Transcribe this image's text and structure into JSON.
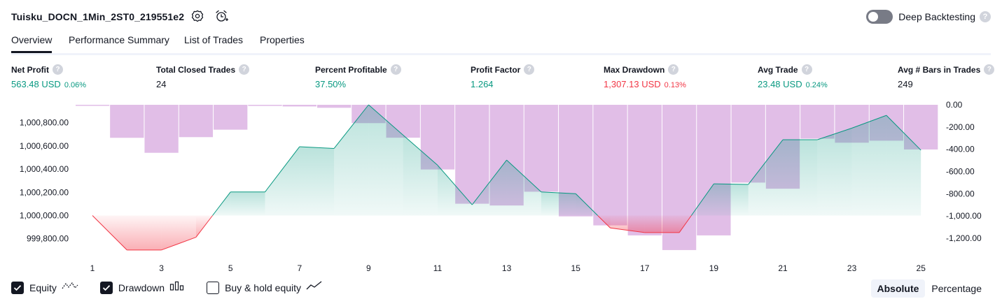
{
  "header": {
    "title": "Tuisku_DOCN_1Min_2ST0_219551e2",
    "settings_icon": "gear-icon",
    "alert_icon": "alarm-clock-icon",
    "deep_backtesting_label": "Deep Backtesting",
    "help_glyph": "?"
  },
  "tabs": [
    {
      "label": "Overview",
      "active": true
    },
    {
      "label": "Performance Summary",
      "active": false
    },
    {
      "label": "List of Trades",
      "active": false
    },
    {
      "label": "Properties",
      "active": false
    }
  ],
  "stats": [
    {
      "label": "Net Profit",
      "value": "563.48 USD",
      "pct": "0.06%",
      "color": "#089981"
    },
    {
      "label": "Total Closed Trades",
      "value": "24",
      "pct": "",
      "color": "#131722"
    },
    {
      "label": "Percent Profitable",
      "value": "37.50%",
      "pct": "",
      "color": "#089981"
    },
    {
      "label": "Profit Factor",
      "value": "1.264",
      "pct": "",
      "color": "#089981"
    },
    {
      "label": "Max Drawdown",
      "value": "1,307.13 USD",
      "pct": "0.13%",
      "color": "#f23645"
    },
    {
      "label": "Avg Trade",
      "value": "23.48 USD",
      "pct": "0.24%",
      "color": "#089981"
    },
    {
      "label": "Avg # Bars in Trades",
      "value": "249",
      "pct": "",
      "color": "#131722"
    }
  ],
  "chart_data": {
    "type": "area",
    "x_ticks": [
      "1",
      "3",
      "5",
      "7",
      "9",
      "11",
      "13",
      "15",
      "17",
      "19",
      "21",
      "23",
      "25"
    ],
    "left_axis": {
      "ticks": [
        "1,000,800.00",
        "1,000,600.00",
        "1,000,400.00",
        "1,000,200.00",
        "1,000,000.00",
        "999,800.00"
      ],
      "tick_values": [
        1000800,
        1000600,
        1000400,
        1000200,
        1000000,
        999800
      ],
      "range": [
        999690,
        1000954
      ]
    },
    "right_axis": {
      "ticks": [
        "0.00",
        "-200.00",
        "-400.00",
        "-600.00",
        "-800.00",
        "-1,000.00",
        "-1,200.00"
      ],
      "tick_values": [
        0,
        -200,
        -400,
        -600,
        -800,
        -1000,
        -1200
      ],
      "range": [
        -1320,
        0
      ]
    },
    "baseline": 1000000,
    "series": [
      {
        "name": "Equity",
        "type": "line",
        "positive_color": "#089981",
        "negative_color": "#f23645",
        "x": [
          1,
          2,
          3,
          4,
          5,
          6,
          7,
          8,
          9,
          10,
          11,
          12,
          13,
          14,
          15,
          16,
          17,
          18,
          19,
          20,
          21,
          22,
          23,
          24,
          25
        ],
        "values": [
          1000000,
          999703,
          999703,
          999813,
          1000203,
          1000203,
          1000593,
          1000578,
          1000954,
          1000693,
          1000433,
          1000093,
          1000478,
          1000203,
          1000188,
          999893,
          999853,
          999853,
          1000273,
          1000268,
          1000653,
          1000653,
          1000753,
          1000863,
          1000563
        ]
      },
      {
        "name": "Drawdown",
        "type": "bar",
        "color": "#e1bee7",
        "x": [
          1,
          2,
          3,
          4,
          5,
          6,
          7,
          8,
          9,
          10,
          11,
          12,
          13,
          14,
          15,
          16,
          17,
          18,
          19,
          20,
          21,
          22,
          23,
          24,
          25
        ],
        "values": [
          -2,
          -297,
          -432,
          -291,
          -224,
          -10,
          -15,
          -27,
          -165,
          -296,
          -582,
          -890,
          -906,
          -782,
          -1004,
          -1085,
          -1175,
          -1307,
          -1175,
          -700,
          -755,
          -305,
          -341,
          -323,
          -402
        ]
      }
    ]
  },
  "legend": [
    {
      "label": "Equity",
      "checked": true,
      "icon": "equity-line-icon"
    },
    {
      "label": "Drawdown",
      "checked": true,
      "icon": "drawdown-bars-icon"
    },
    {
      "label": "Buy & hold equity",
      "checked": false,
      "icon": "buy-hold-line-icon"
    }
  ],
  "modes": [
    {
      "label": "Absolute",
      "active": true
    },
    {
      "label": "Percentage",
      "active": false
    }
  ]
}
